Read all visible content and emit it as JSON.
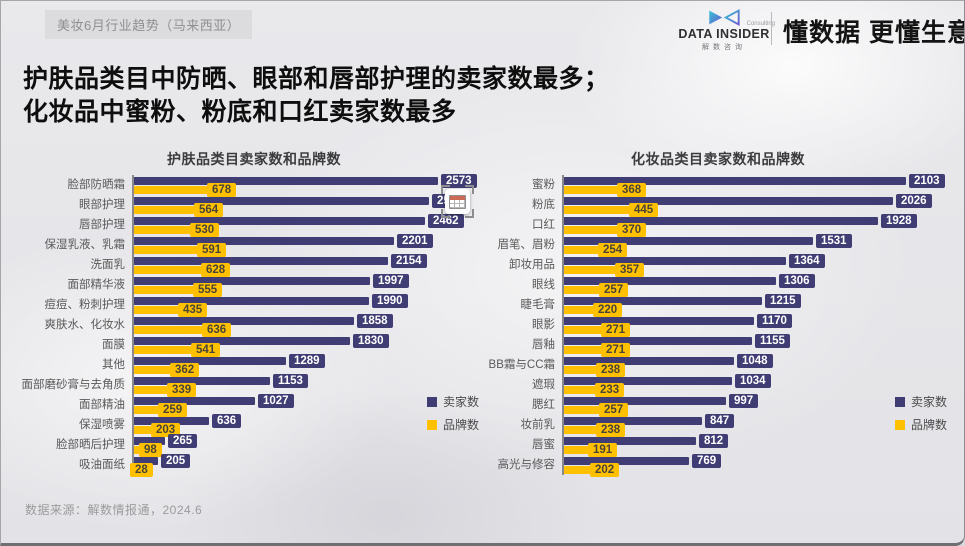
{
  "header": {
    "badge": "美妆6月行业趋势（马来西亚）",
    "logo": {
      "brand": "DATA INSIDER",
      "consulting": "Consulting",
      "chinese": "解数咨询"
    },
    "slogan": "懂数据 更懂生意"
  },
  "title": {
    "line1": "护肤品类目中防晒、眼部和唇部护理的卖家数最多；",
    "line2": "化妆品中蜜粉、粉底和口红卖家数最多"
  },
  "footer": {
    "source": "数据来源：解数情报通，2024.6"
  },
  "colors": {
    "sellers_bar": "#3F3D74",
    "brands_bar": "#FFC000",
    "background": "#E8E8EB"
  },
  "cursor": {
    "icon": "table-selection-cursor"
  },
  "chart_data": [
    {
      "type": "bar",
      "orientation": "horizontal",
      "title": "护肤品类目卖家数和品牌数",
      "legend_position": "bottom-right",
      "value_labels": "on",
      "xlim": [
        0,
        2600
      ],
      "categories": [
        "脸部防晒霜",
        "眼部护理",
        "唇部护理",
        "保湿乳液、乳霜",
        "洗面乳",
        "面部精华液",
        "痘痘、粉刺护理",
        "爽肤水、化妆水",
        "面膜",
        "其他",
        "面部磨砂膏与去角质",
        "面部精油",
        "保湿喷雾",
        "脸部晒后护理",
        "吸油面纸"
      ],
      "series": [
        {
          "name": "卖家数",
          "color": "#3F3D74",
          "values": [
            2573,
            2500,
            2462,
            2201,
            2154,
            1997,
            1990,
            1858,
            1830,
            1289,
            1153,
            1027,
            636,
            265,
            205
          ]
        },
        {
          "name": "品牌数",
          "color": "#FFC000",
          "values": [
            678,
            564,
            530,
            591,
            628,
            555,
            435,
            636,
            541,
            362,
            339,
            259,
            203,
            98,
            28
          ]
        }
      ]
    },
    {
      "type": "bar",
      "orientation": "horizontal",
      "title": "化妆品类目卖家数和品牌数",
      "legend_position": "bottom-right",
      "value_labels": "on",
      "xlim": [
        0,
        2200
      ],
      "categories": [
        "蜜粉",
        "粉底",
        "口红",
        "眉笔、眉粉",
        "卸妆用品",
        "眼线",
        "睫毛膏",
        "眼影",
        "唇釉",
        "BB霜与CC霜",
        "遮瑕",
        "腮红",
        "妆前乳",
        "唇蜜",
        "高光与修容"
      ],
      "series": [
        {
          "name": "卖家数",
          "color": "#3F3D74",
          "values": [
            2103,
            2026,
            1928,
            1531,
            1364,
            1306,
            1215,
            1170,
            1155,
            1048,
            1034,
            997,
            847,
            812,
            769
          ]
        },
        {
          "name": "品牌数",
          "color": "#FFC000",
          "values": [
            368,
            445,
            370,
            254,
            357,
            257,
            220,
            271,
            271,
            238,
            233,
            257,
            238,
            191,
            202
          ]
        }
      ]
    }
  ]
}
